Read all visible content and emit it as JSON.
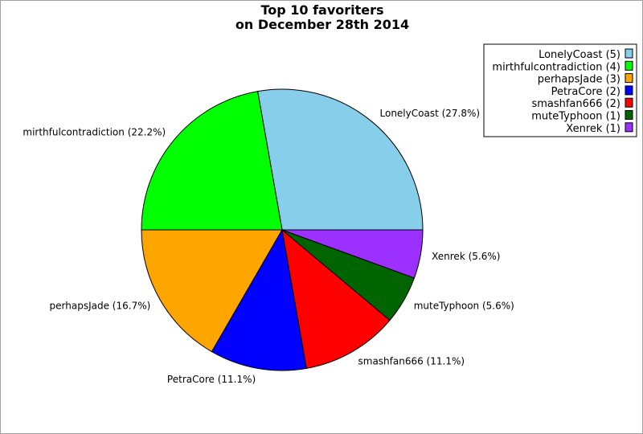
{
  "chart_data": {
    "type": "pie",
    "title": "Top 10 favoriters",
    "subtitle": "on December 28th 2014",
    "legend_position": "top-right",
    "slices": [
      {
        "name": "LonelyCoast",
        "value": 5,
        "label": "LonelyCoast (27.8%)",
        "legend": "LonelyCoast (5)",
        "color": "#87ceeb"
      },
      {
        "name": "mirthfulcontradiction",
        "value": 4,
        "label": "mirthfulcontradiction (22.2%)",
        "legend": "mirthfulcontradiction (4)",
        "color": "#00ff00"
      },
      {
        "name": "perhapsJade",
        "value": 3,
        "label": "perhapsJade (16.7%)",
        "legend": "perhapsJade (3)",
        "color": "#ffa500"
      },
      {
        "name": "PetraCore",
        "value": 2,
        "label": "PetraCore (11.1%)",
        "legend": "PetraCore (2)",
        "color": "#0000ff"
      },
      {
        "name": "smashfan666",
        "value": 2,
        "label": "smashfan666 (11.1%)",
        "legend": "smashfan666 (2)",
        "color": "#ff0000"
      },
      {
        "name": "muteTyphoon",
        "value": 1,
        "label": "muteTyphoon (5.6%)",
        "legend": "muteTyphoon (1)",
        "color": "#006400"
      },
      {
        "name": "Xenrek",
        "value": 1,
        "label": "Xenrek (5.6%)",
        "legend": "Xenrek (1)",
        "color": "#9b30ff"
      }
    ]
  }
}
